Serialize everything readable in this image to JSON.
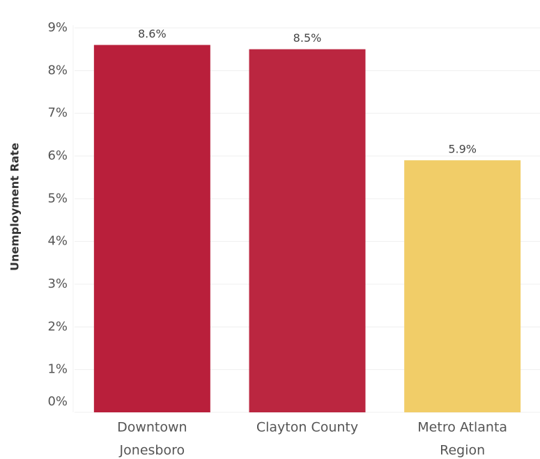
{
  "chart_data": {
    "type": "bar",
    "y_axis_label": "Unemployment Rate",
    "categories": [
      [
        "Downtown",
        "Jonesboro"
      ],
      [
        "Clayton County"
      ],
      [
        "Metro Atlanta",
        "Region"
      ]
    ],
    "values": [
      8.6,
      8.5,
      5.9
    ],
    "value_labels": [
      "8.6%",
      "8.5%",
      "5.9%"
    ],
    "colors": [
      "#b91f3b",
      "#bb2640",
      "#f1cd68"
    ],
    "ylim": [
      0,
      9
    ],
    "yticks": [
      {
        "value": 0,
        "label": "0%"
      },
      {
        "value": 1,
        "label": "1%"
      },
      {
        "value": 2,
        "label": "2%"
      },
      {
        "value": 3,
        "label": "3%"
      },
      {
        "value": 4,
        "label": "4%"
      },
      {
        "value": 5,
        "label": "5%"
      },
      {
        "value": 6,
        "label": "6%"
      },
      {
        "value": 7,
        "label": "7%"
      },
      {
        "value": 8,
        "label": "8%"
      },
      {
        "value": 9,
        "label": "9%"
      }
    ],
    "grid": true
  }
}
